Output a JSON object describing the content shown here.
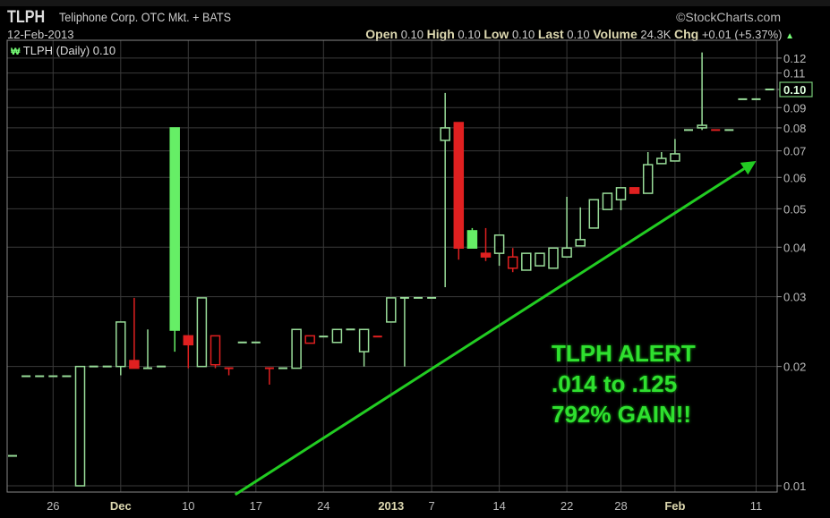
{
  "header": {
    "symbol": "TLPH",
    "name": "Teliphone Corp. OTC Mkt. + BATS",
    "brand": "©StockCharts.com",
    "date": "12-Feb-2013",
    "open_label": "Open",
    "open": "0.10",
    "high_label": "High",
    "high": "0.10",
    "low_label": "Low",
    "low": "0.10",
    "last_label": "Last",
    "last": "0.10",
    "volume_label": "Volume",
    "volume": "24.3K",
    "chg_label": "Chg",
    "chg": "+0.01 (+5.37%)",
    "chg_icon": "triangle-up-icon"
  },
  "legend": {
    "text": "TLPH (Daily) 0.10",
    "icon": "candlestick-icon"
  },
  "annotation": {
    "lines": [
      "TLPH ALERT",
      ".014 to .125",
      "792% GAIN!!"
    ],
    "color": "#2fe02f"
  },
  "colors": {
    "up": "#99dd99",
    "down": "#e02020",
    "bright_up": "#66ee66",
    "grid": "#3a3a3a",
    "arrow": "#22cc22"
  },
  "chart_data": {
    "type": "candlestick",
    "yscale": "log",
    "ylim": [
      0.0095,
      0.13
    ],
    "grid": true,
    "last_price_label": "0.10",
    "y_ticks": [
      "0.12",
      "0.11",
      "0.10",
      "0.09",
      "0.08",
      "0.07",
      "0.06",
      "0.05",
      "0.04",
      "0.03",
      "0.02",
      "0.01"
    ],
    "x_ticks": [
      {
        "label": "26",
        "date": "2012-11-26"
      },
      {
        "label": "Dec",
        "date": "2012-12-03",
        "bold": true
      },
      {
        "label": "10",
        "date": "2012-12-10"
      },
      {
        "label": "17",
        "date": "2012-12-17"
      },
      {
        "label": "24",
        "date": "2012-12-24"
      },
      {
        "label": "2013",
        "date": "2013-01-02",
        "bold": true
      },
      {
        "label": "7",
        "date": "2013-01-07"
      },
      {
        "label": "14",
        "date": "2013-01-14"
      },
      {
        "label": "22",
        "date": "2013-01-22"
      },
      {
        "label": "28",
        "date": "2013-01-28"
      },
      {
        "label": "Feb",
        "date": "2013-02-01",
        "bold": true
      },
      {
        "label": "11",
        "date": "2013-02-11"
      }
    ],
    "trendline": {
      "from": {
        "date": "2012-12-14",
        "value": 0.0095
      },
      "to": {
        "date": "2013-02-11",
        "value": 0.066
      }
    },
    "candles": [
      {
        "d": "2012-11-20",
        "o": 0.0119,
        "h": 0.0119,
        "l": 0.0119,
        "c": 0.0119,
        "col": "up"
      },
      {
        "d": "2012-11-21",
        "o": 0.0189,
        "h": 0.0189,
        "l": 0.0189,
        "c": 0.0189,
        "col": "up"
      },
      {
        "d": "2012-11-23",
        "o": 0.0189,
        "h": 0.0189,
        "l": 0.0189,
        "c": 0.0189,
        "col": "up"
      },
      {
        "d": "2012-11-26",
        "o": 0.0189,
        "h": 0.0189,
        "l": 0.0189,
        "c": 0.0189,
        "col": "up"
      },
      {
        "d": "2012-11-27",
        "o": 0.0189,
        "h": 0.0189,
        "l": 0.0189,
        "c": 0.0189,
        "col": "up"
      },
      {
        "d": "2012-11-28",
        "o": 0.01,
        "h": 0.02,
        "l": 0.01,
        "c": 0.02,
        "col": "up"
      },
      {
        "d": "2012-11-29",
        "o": 0.02,
        "h": 0.02,
        "l": 0.02,
        "c": 0.02,
        "col": "up"
      },
      {
        "d": "2012-11-30",
        "o": 0.02,
        "h": 0.02,
        "l": 0.02,
        "c": 0.02,
        "col": "up"
      },
      {
        "d": "2012-12-03",
        "o": 0.02,
        "h": 0.0259,
        "l": 0.019,
        "c": 0.0259,
        "col": "up"
      },
      {
        "d": "2012-12-04",
        "o": 0.0207,
        "h": 0.0298,
        "l": 0.0198,
        "c": 0.0198,
        "col": "down"
      },
      {
        "d": "2012-12-05",
        "o": 0.0198,
        "h": 0.0248,
        "l": 0.0198,
        "c": 0.0198,
        "col": "up"
      },
      {
        "d": "2012-12-06",
        "o": 0.02,
        "h": 0.02,
        "l": 0.02,
        "c": 0.02,
        "col": "up"
      },
      {
        "d": "2012-12-07",
        "o": 0.08,
        "h": 0.08,
        "l": 0.0218,
        "c": 0.0247,
        "col": "bright_up"
      },
      {
        "d": "2012-12-10",
        "o": 0.0239,
        "h": 0.0239,
        "l": 0.0198,
        "c": 0.0227,
        "col": "down"
      },
      {
        "d": "2012-12-11",
        "o": 0.02,
        "h": 0.0298,
        "l": 0.02,
        "c": 0.0298,
        "col": "up"
      },
      {
        "d": "2012-12-12",
        "o": 0.0202,
        "h": 0.0239,
        "l": 0.0198,
        "c": 0.0239,
        "col": "down"
      },
      {
        "d": "2012-12-13",
        "o": 0.0198,
        "h": 0.0198,
        "l": 0.019,
        "c": 0.0198,
        "col": "down"
      },
      {
        "d": "2012-12-14",
        "o": 0.023,
        "h": 0.023,
        "l": 0.023,
        "c": 0.023,
        "col": "up"
      },
      {
        "d": "2012-12-17",
        "o": 0.023,
        "h": 0.023,
        "l": 0.023,
        "c": 0.023,
        "col": "up"
      },
      {
        "d": "2012-12-18",
        "o": 0.0198,
        "h": 0.0198,
        "l": 0.018,
        "c": 0.0198,
        "col": "down"
      },
      {
        "d": "2012-12-19",
        "o": 0.0198,
        "h": 0.0198,
        "l": 0.0198,
        "c": 0.0198,
        "col": "up"
      },
      {
        "d": "2012-12-20",
        "o": 0.0198,
        "h": 0.0248,
        "l": 0.0198,
        "c": 0.0248,
        "col": "up"
      },
      {
        "d": "2012-12-21",
        "o": 0.0229,
        "h": 0.0239,
        "l": 0.0229,
        "c": 0.0239,
        "col": "down"
      },
      {
        "d": "2012-12-24",
        "o": 0.0238,
        "h": 0.0238,
        "l": 0.0238,
        "c": 0.0238,
        "col": "up"
      },
      {
        "d": "2012-12-26",
        "o": 0.023,
        "h": 0.0248,
        "l": 0.023,
        "c": 0.0248,
        "col": "up"
      },
      {
        "d": "2012-12-27",
        "o": 0.0248,
        "h": 0.0248,
        "l": 0.0248,
        "c": 0.0248,
        "col": "up"
      },
      {
        "d": "2012-12-28",
        "o": 0.0218,
        "h": 0.0248,
        "l": 0.02,
        "c": 0.0248,
        "col": "up"
      },
      {
        "d": "2012-12-31",
        "o": 0.0238,
        "h": 0.0238,
        "l": 0.0238,
        "c": 0.0238,
        "col": "down"
      },
      {
        "d": "2013-01-02",
        "o": 0.0259,
        "h": 0.0298,
        "l": 0.0259,
        "c": 0.0298,
        "col": "up"
      },
      {
        "d": "2013-01-03",
        "o": 0.0298,
        "h": 0.0298,
        "l": 0.02,
        "c": 0.0298,
        "col": "up"
      },
      {
        "d": "2013-01-04",
        "o": 0.0298,
        "h": 0.0298,
        "l": 0.0298,
        "c": 0.0298,
        "col": "up"
      },
      {
        "d": "2013-01-07",
        "o": 0.0298,
        "h": 0.0298,
        "l": 0.0298,
        "c": 0.0298,
        "col": "up"
      },
      {
        "d": "2013-01-08",
        "o": 0.0744,
        "h": 0.098,
        "l": 0.0317,
        "c": 0.08,
        "col": "up"
      },
      {
        "d": "2013-01-09",
        "o": 0.0825,
        "h": 0.0825,
        "l": 0.0372,
        "c": 0.0398,
        "col": "down"
      },
      {
        "d": "2013-01-10",
        "o": 0.044,
        "h": 0.0447,
        "l": 0.0398,
        "c": 0.0398,
        "col": "bright_up"
      },
      {
        "d": "2013-01-11",
        "o": 0.0386,
        "h": 0.0447,
        "l": 0.0369,
        "c": 0.0378,
        "col": "down"
      },
      {
        "d": "2013-01-14",
        "o": 0.0386,
        "h": 0.0429,
        "l": 0.0359,
        "c": 0.0429,
        "col": "up"
      },
      {
        "d": "2013-01-15",
        "o": 0.0354,
        "h": 0.0398,
        "l": 0.0346,
        "c": 0.0378,
        "col": "down"
      },
      {
        "d": "2013-01-16",
        "o": 0.035,
        "h": 0.0386,
        "l": 0.035,
        "c": 0.0386,
        "col": "up"
      },
      {
        "d": "2013-01-17",
        "o": 0.0359,
        "h": 0.0386,
        "l": 0.0359,
        "c": 0.0386,
        "col": "up"
      },
      {
        "d": "2013-01-18",
        "o": 0.0354,
        "h": 0.0398,
        "l": 0.0354,
        "c": 0.0398,
        "col": "up"
      },
      {
        "d": "2013-01-22",
        "o": 0.0378,
        "h": 0.0536,
        "l": 0.0378,
        "c": 0.0398,
        "col": "up"
      },
      {
        "d": "2013-01-23",
        "o": 0.0403,
        "h": 0.0504,
        "l": 0.0403,
        "c": 0.0418,
        "col": "up"
      },
      {
        "d": "2013-01-24",
        "o": 0.0447,
        "h": 0.0527,
        "l": 0.0447,
        "c": 0.0527,
        "col": "up"
      },
      {
        "d": "2013-01-25",
        "o": 0.0498,
        "h": 0.0547,
        "l": 0.0498,
        "c": 0.0547,
        "col": "up"
      },
      {
        "d": "2013-01-28",
        "o": 0.0527,
        "h": 0.0565,
        "l": 0.0496,
        "c": 0.0565,
        "col": "up"
      },
      {
        "d": "2013-01-29",
        "o": 0.0565,
        "h": 0.0565,
        "l": 0.0547,
        "c": 0.0547,
        "col": "down"
      },
      {
        "d": "2013-01-30",
        "o": 0.0547,
        "h": 0.0695,
        "l": 0.0547,
        "c": 0.0646,
        "col": "up"
      },
      {
        "d": "2013-01-31",
        "o": 0.065,
        "h": 0.0695,
        "l": 0.065,
        "c": 0.067,
        "col": "up"
      },
      {
        "d": "2013-02-01",
        "o": 0.066,
        "h": 0.075,
        "l": 0.066,
        "c": 0.0688,
        "col": "up"
      },
      {
        "d": "2013-02-04",
        "o": 0.079,
        "h": 0.079,
        "l": 0.079,
        "c": 0.079,
        "col": "up"
      },
      {
        "d": "2013-02-05",
        "o": 0.08,
        "h": 0.124,
        "l": 0.079,
        "c": 0.0812,
        "col": "up"
      },
      {
        "d": "2013-02-06",
        "o": 0.079,
        "h": 0.079,
        "l": 0.079,
        "c": 0.079,
        "col": "down"
      },
      {
        "d": "2013-02-07",
        "o": 0.079,
        "h": 0.079,
        "l": 0.079,
        "c": 0.079,
        "col": "up"
      },
      {
        "d": "2013-02-08",
        "o": 0.0945,
        "h": 0.0945,
        "l": 0.0945,
        "c": 0.0945,
        "col": "up"
      },
      {
        "d": "2013-02-11",
        "o": 0.0945,
        "h": 0.0945,
        "l": 0.0945,
        "c": 0.0945,
        "col": "up"
      },
      {
        "d": "2013-02-12",
        "o": 0.1,
        "h": 0.1,
        "l": 0.1,
        "c": 0.1,
        "col": "up"
      }
    ]
  }
}
